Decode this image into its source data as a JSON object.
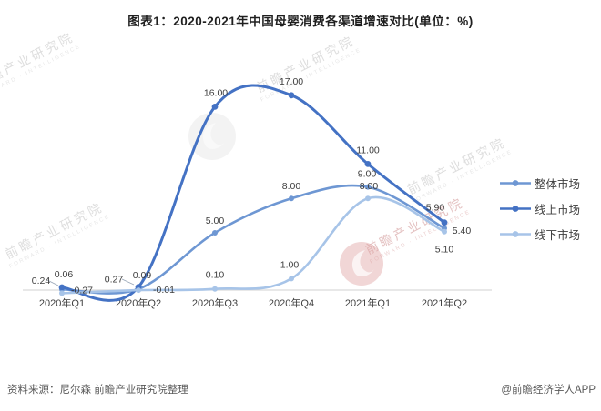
{
  "title": "图表1：2020-2021年中国母婴消费各渠道增速对比(单位：%)",
  "chart_data": {
    "type": "line",
    "title": "图表1：2020-2021年中国母婴消费各渠道增速对比(单位：%)",
    "unit": "%",
    "categories": [
      "2020年Q1",
      "2020年Q2",
      "2020年Q3",
      "2020年Q4",
      "2021年Q1",
      "2021年Q2"
    ],
    "series": [
      {
        "name": "整体市场",
        "color": "#6E97D3",
        "values": [
          0.06,
          0.09,
          5.0,
          8.0,
          9.0,
          5.4
        ],
        "labels": [
          "0.06",
          "0.09",
          "5.00",
          "8.00",
          "9.00",
          "5.40"
        ]
      },
      {
        "name": "线上市场",
        "color": "#4472C4",
        "values": [
          0.24,
          0.27,
          16.0,
          17.0,
          11.0,
          5.9
        ],
        "labels": [
          "0.24",
          "0.27",
          "16.00",
          "17.00",
          "11.00",
          "5.90"
        ]
      },
      {
        "name": "线下市场",
        "color": "#A7C4E8",
        "values": [
          -0.27,
          -0.01,
          0.1,
          1.0,
          8.0,
          5.1
        ],
        "labels": [
          "-0.27",
          "-0.01",
          "0.10",
          "1.00",
          "8.00",
          "5.10"
        ]
      }
    ],
    "legend_position": "right",
    "grid": false,
    "smooth": true,
    "ylim": [
      -1.5,
      18
    ],
    "axis_color": "#d9d9d9",
    "label_color": "#3d3d3d"
  },
  "footer": {
    "source": "资料来源：尼尔森 前瞻产业研究院整理",
    "credit": "@前瞻经济学人APP"
  },
  "watermark": {
    "stamp_text": "前瞻产业研究院",
    "stamp_sub": "FORWARD · INTELLIGENCE",
    "pink_stamp_text": "前瞻产业研究院"
  }
}
